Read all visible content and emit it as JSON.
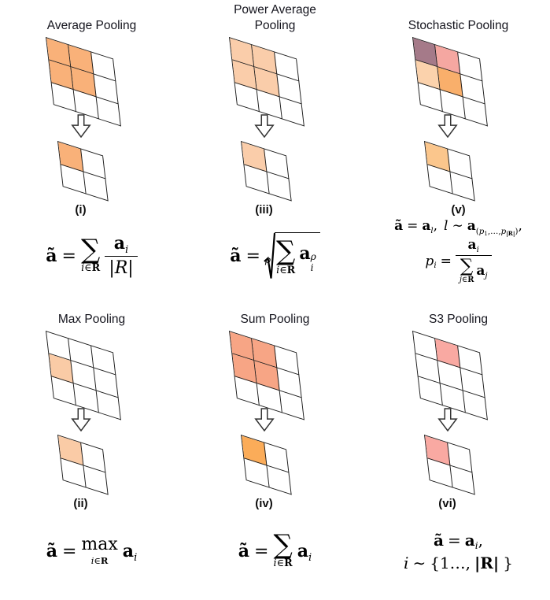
{
  "figure": {
    "line_color": "#1d1d1d",
    "title_color": "#15151e",
    "panels": [
      {
        "key": "average",
        "title_lines": [
          "Average Pooling"
        ],
        "label": "(i)",
        "grid3_cells": [
          "#F9B179",
          "#F9B179",
          null,
          "#F9B179",
          "#F9B179",
          null,
          null,
          null,
          null
        ],
        "grid2_cells": [
          "#F9B179",
          null,
          null,
          null
        ],
        "formula": {
          "at": "ã",
          "eq": "=",
          "sum": "∑",
          "lim_i": "i",
          "lim_in": "∈",
          "lim_R": "R",
          "a": "a",
          "a_sub": "i",
          "den": "|R|"
        }
      },
      {
        "key": "power-average",
        "title_lines": [
          "Power Average",
          "Pooling"
        ],
        "label": "(iii)",
        "grid3_cells": [
          "#FACDAA",
          "#FACDAA",
          null,
          "#FACDAA",
          "#FACDAA",
          null,
          null,
          null,
          null
        ],
        "grid2_cells": [
          "#FACDAA",
          null,
          null,
          null
        ],
        "formula": {
          "at": "ã",
          "eq": "=",
          "idx": "ρ",
          "sum": "∑",
          "lim_i": "i",
          "lim_in": "∈",
          "lim_R": "R",
          "a": "a",
          "a_sub": "i",
          "a_sup": "ρ"
        }
      },
      {
        "key": "stochastic",
        "title_lines": [
          "Stochastic Pooling"
        ],
        "label": "(v)",
        "grid3_cells": [
          "#A57A89",
          "#F5A7A1",
          null,
          "#FBD2AC",
          "#F9AF6B",
          null,
          null,
          null,
          null
        ],
        "grid2_cells": [
          "#FBC68C",
          null,
          null,
          null
        ],
        "formula": {
          "at": "ã",
          "eq": "=",
          "a1": "a",
          "a1_sub": "l",
          "c1": ",",
          "l": "l",
          "sim": "∼",
          "a2": "a",
          "s_open": "(",
          "s_p1": "p",
          "s_1": "1",
          "s_mid": ",…,",
          "s_p2": "p",
          "s_R": "|R|",
          "s_close": ")",
          "c2": ",",
          "p": "p",
          "p_sub": "i",
          "eq2": "=",
          "n_a": "a",
          "n_sub": "i",
          "sum": "∑",
          "lim_j": "j",
          "lim_in": "∈",
          "lim_R": "R",
          "d_a": "a",
          "d_sub": "j"
        }
      },
      {
        "key": "max",
        "title_lines": [
          "Max Pooling"
        ],
        "label": "(ii)",
        "grid3_cells": [
          null,
          null,
          null,
          "#FACBA6",
          null,
          null,
          null,
          null,
          null
        ],
        "grid2_cells": [
          "#FACBA6",
          null,
          null,
          null
        ],
        "formula": {
          "at": "ã",
          "eq": "=",
          "op": "max",
          "lim_i": "i",
          "lim_in": "∈",
          "lim_R": "R",
          "a": "a",
          "a_sub": "i"
        }
      },
      {
        "key": "sum",
        "title_lines": [
          "Sum Pooling"
        ],
        "label": "(iv)",
        "grid3_cells": [
          "#F7A585",
          "#F7A585",
          null,
          "#F7A585",
          "#F7A585",
          null,
          null,
          null,
          null
        ],
        "grid2_cells": [
          "#FBAC59",
          null,
          null,
          null
        ],
        "formula": {
          "at": "ã",
          "eq": "=",
          "sum": "∑",
          "lim_i": "i",
          "lim_in": "∈",
          "lim_R": "R",
          "a": "a",
          "a_sub": "i"
        }
      },
      {
        "key": "s3",
        "title_lines": [
          "S3 Pooling"
        ],
        "label": "(vi)",
        "grid3_cells": [
          null,
          "#F9A9A2",
          null,
          null,
          null,
          null,
          null,
          null,
          null
        ],
        "grid2_cells": [
          "#F9A9A2",
          null,
          null,
          null
        ],
        "formula": {
          "at": "ã",
          "eq": "=",
          "a": "a",
          "a_sub": "i",
          "c1": ",",
          "i": "i",
          "sim": "∼",
          "set_open": "{1…,",
          "absR": "|R|",
          "set_close": "}"
        }
      }
    ]
  }
}
